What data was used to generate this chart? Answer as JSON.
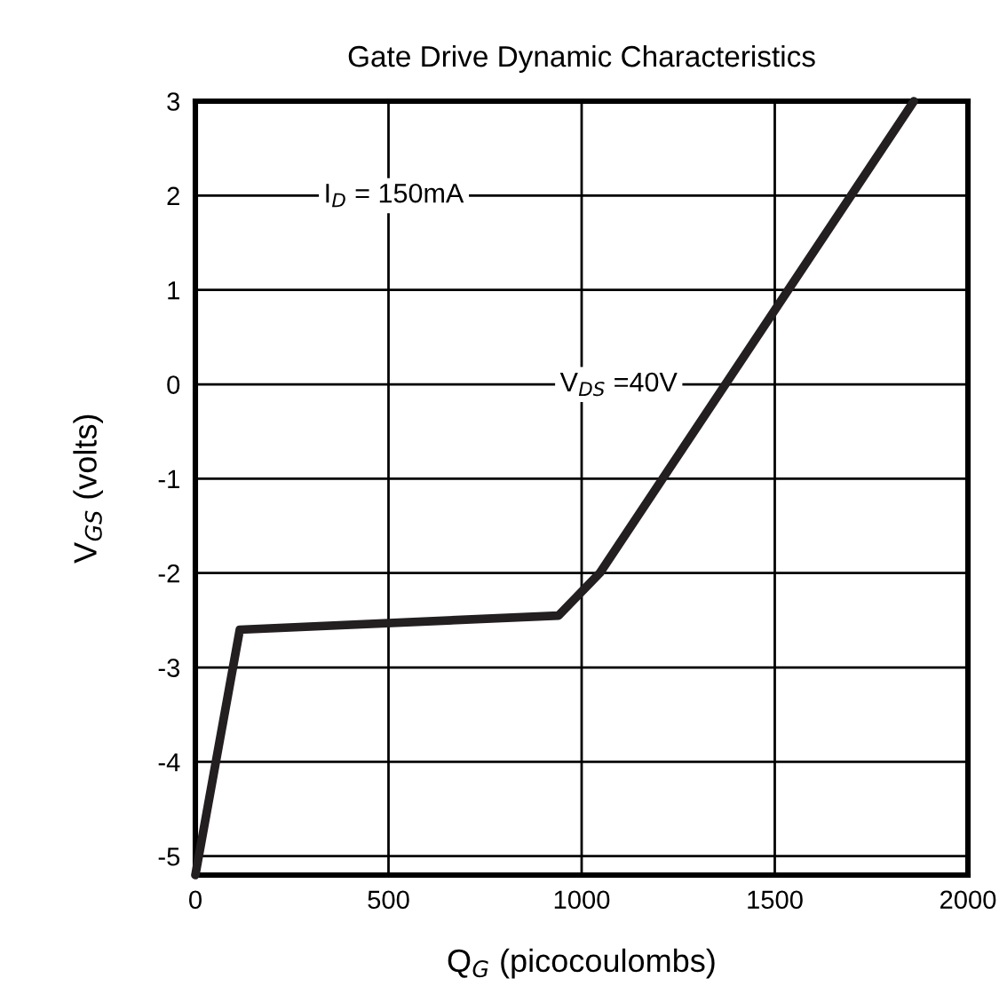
{
  "chart_data": {
    "type": "line",
    "title": "Gate Drive Dynamic Characteristics",
    "xlabel": "Q$_{G}$ (picocoulombs)",
    "ylabel": "V$_{GS}$ (volts)",
    "series": [
      {
        "color": "#231f20",
        "x": [
          0,
          115,
          940,
          1047,
          1860
        ],
        "values": [
          -5.2,
          -2.6,
          -2.45,
          -2,
          3
        ]
      }
    ],
    "xlim": [
      0,
      2000
    ],
    "xticks": [
      0,
      500,
      1000,
      1500,
      2000
    ],
    "ylim": [
      -5.2,
      3
    ],
    "yticks": [
      -5,
      -4,
      -3,
      -2,
      -1,
      0,
      1,
      2,
      3
    ],
    "grid": true,
    "marker": "none",
    "line_style": "solid",
    "annotations": [
      "I$_{D}$ = 150mA",
      "V$_{DS}$ =40V"
    ]
  }
}
